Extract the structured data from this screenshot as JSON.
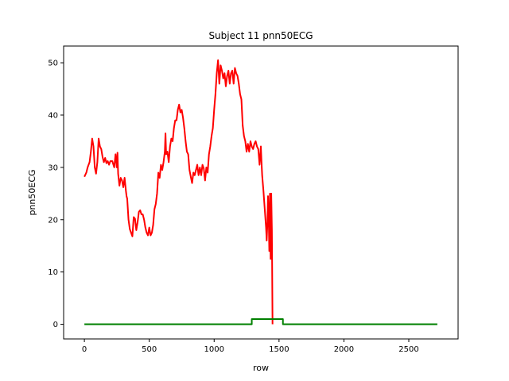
{
  "chart_data": {
    "type": "line",
    "title": "Subject 11 pnn50ECG",
    "xlabel": "row",
    "ylabel": "pnn50ECG",
    "xlim": [
      -160,
      2880
    ],
    "ylim": [
      -2.8,
      53.2
    ],
    "grid": false,
    "xticks": [
      0,
      500,
      1000,
      1500,
      2000,
      2500
    ],
    "yticks": [
      0,
      10,
      20,
      30,
      40,
      50
    ],
    "series": [
      {
        "color": "#ff0000",
        "points": [
          [
            0,
            28.2
          ],
          [
            15,
            29
          ],
          [
            25,
            30
          ],
          [
            40,
            31
          ],
          [
            50,
            33
          ],
          [
            60,
            35.5
          ],
          [
            70,
            34
          ],
          [
            80,
            30
          ],
          [
            90,
            28.8
          ],
          [
            100,
            31
          ],
          [
            110,
            35.5
          ],
          [
            120,
            34
          ],
          [
            130,
            33.5
          ],
          [
            140,
            32
          ],
          [
            150,
            31
          ],
          [
            160,
            31.8
          ],
          [
            170,
            30.8
          ],
          [
            180,
            31.2
          ],
          [
            190,
            30.5
          ],
          [
            200,
            31.2
          ],
          [
            215,
            31.2
          ],
          [
            230,
            30
          ],
          [
            240,
            32.5
          ],
          [
            250,
            30
          ],
          [
            255,
            32.8
          ],
          [
            260,
            28.8
          ],
          [
            270,
            26.5
          ],
          [
            280,
            28
          ],
          [
            290,
            27.5
          ],
          [
            300,
            26.2
          ],
          [
            310,
            28
          ],
          [
            320,
            25.5
          ],
          [
            325,
            24.5
          ],
          [
            330,
            24
          ],
          [
            340,
            20
          ],
          [
            350,
            18.2
          ],
          [
            360,
            17.5
          ],
          [
            370,
            16.8
          ],
          [
            380,
            20.5
          ],
          [
            390,
            20.2
          ],
          [
            400,
            18
          ],
          [
            410,
            19.5
          ],
          [
            420,
            21.5
          ],
          [
            430,
            21.8
          ],
          [
            440,
            21
          ],
          [
            450,
            21
          ],
          [
            460,
            20
          ],
          [
            470,
            18.5
          ],
          [
            480,
            17.5
          ],
          [
            490,
            17
          ],
          [
            500,
            18.5
          ],
          [
            510,
            17
          ],
          [
            520,
            17.5
          ],
          [
            530,
            19
          ],
          [
            540,
            22
          ],
          [
            550,
            23
          ],
          [
            560,
            25
          ],
          [
            570,
            29
          ],
          [
            580,
            28
          ],
          [
            590,
            30.5
          ],
          [
            600,
            29.5
          ],
          [
            610,
            31
          ],
          [
            620,
            33
          ],
          [
            625,
            36.5
          ],
          [
            630,
            32.5
          ],
          [
            640,
            33
          ],
          [
            650,
            31
          ],
          [
            660,
            34
          ],
          [
            670,
            35.5
          ],
          [
            680,
            35
          ],
          [
            690,
            37.5
          ],
          [
            700,
            39
          ],
          [
            710,
            39
          ],
          [
            720,
            41
          ],
          [
            730,
            42
          ],
          [
            740,
            40.5
          ],
          [
            750,
            41
          ],
          [
            760,
            39.5
          ],
          [
            770,
            37.5
          ],
          [
            780,
            35
          ],
          [
            790,
            33
          ],
          [
            800,
            32.5
          ],
          [
            810,
            29.5
          ],
          [
            820,
            28.2
          ],
          [
            830,
            27
          ],
          [
            840,
            29
          ],
          [
            850,
            28.5
          ],
          [
            860,
            29.5
          ],
          [
            870,
            30.5
          ],
          [
            880,
            28.5
          ],
          [
            890,
            30
          ],
          [
            900,
            28.5
          ],
          [
            910,
            30.5
          ],
          [
            920,
            29.8
          ],
          [
            930,
            27.5
          ],
          [
            940,
            30
          ],
          [
            950,
            29
          ],
          [
            960,
            32.5
          ],
          [
            970,
            34
          ],
          [
            980,
            36
          ],
          [
            990,
            37.5
          ],
          [
            1000,
            41
          ],
          [
            1010,
            44
          ],
          [
            1020,
            48
          ],
          [
            1030,
            50.5
          ],
          [
            1040,
            46
          ],
          [
            1050,
            49.5
          ],
          [
            1060,
            48.5
          ],
          [
            1070,
            47
          ],
          [
            1080,
            48
          ],
          [
            1090,
            45.5
          ],
          [
            1100,
            47.5
          ],
          [
            1110,
            48.5
          ],
          [
            1120,
            46
          ],
          [
            1130,
            48
          ],
          [
            1140,
            48.5
          ],
          [
            1150,
            46
          ],
          [
            1160,
            49
          ],
          [
            1170,
            48
          ],
          [
            1180,
            47.5
          ],
          [
            1190,
            46
          ],
          [
            1200,
            44
          ],
          [
            1210,
            43
          ],
          [
            1220,
            38
          ],
          [
            1230,
            36
          ],
          [
            1240,
            35
          ],
          [
            1250,
            33
          ],
          [
            1260,
            34.5
          ],
          [
            1270,
            33
          ],
          [
            1280,
            35
          ],
          [
            1290,
            34
          ],
          [
            1300,
            33.5
          ],
          [
            1310,
            34.5
          ],
          [
            1320,
            35
          ],
          [
            1330,
            34
          ],
          [
            1340,
            33.5
          ],
          [
            1350,
            30.5
          ],
          [
            1360,
            34
          ],
          [
            1365,
            31
          ],
          [
            1370,
            28.5
          ],
          [
            1380,
            25.5
          ],
          [
            1390,
            22
          ],
          [
            1400,
            18.5
          ],
          [
            1405,
            16
          ],
          [
            1410,
            19
          ],
          [
            1415,
            24.5
          ],
          [
            1420,
            21
          ],
          [
            1425,
            14
          ],
          [
            1430,
            25
          ],
          [
            1435,
            12.5
          ],
          [
            1440,
            25
          ],
          [
            1445,
            18
          ],
          [
            1450,
            0
          ]
        ]
      },
      {
        "color": "#008000",
        "points": [
          [
            0,
            0
          ],
          [
            1290,
            0
          ],
          [
            1290,
            1
          ],
          [
            1530,
            1
          ],
          [
            1530,
            0
          ],
          [
            2720,
            0
          ]
        ]
      }
    ]
  }
}
